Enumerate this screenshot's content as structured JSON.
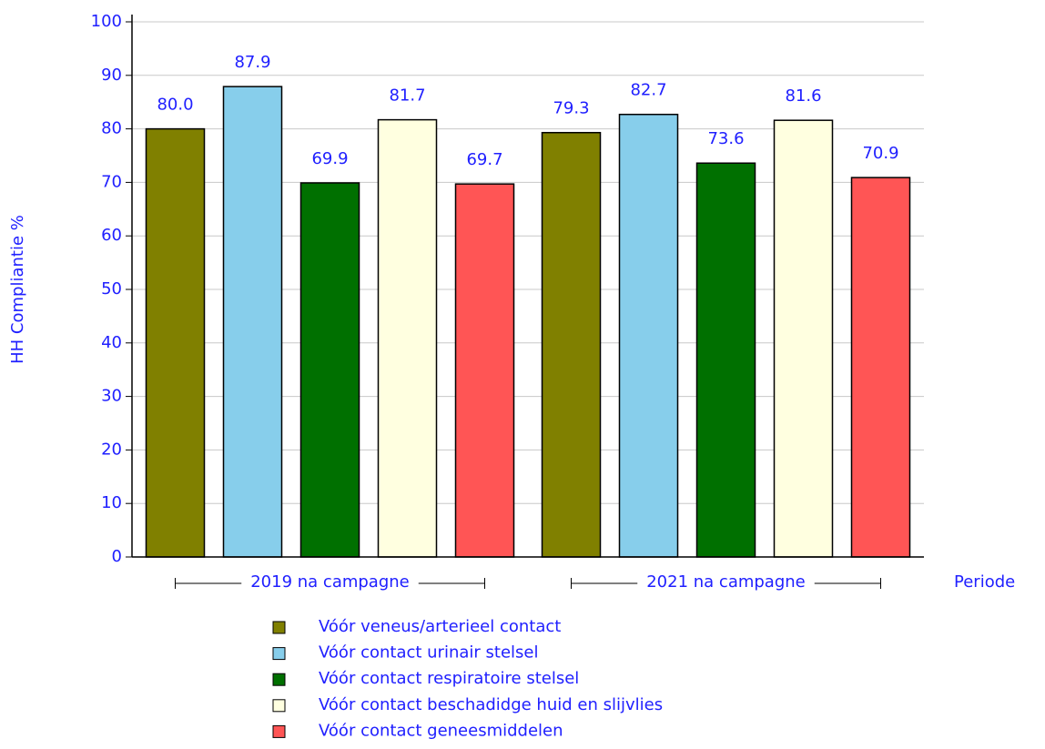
{
  "chart_data": {
    "type": "bar",
    "categories": [
      "2019 na campagne",
      "2021 na campagne"
    ],
    "x_label": "Periode",
    "y_label": "HH Compliantie %",
    "ylim": [
      0,
      100
    ],
    "yticks": [
      0,
      10,
      20,
      30,
      40,
      50,
      60,
      70,
      80,
      90,
      100
    ],
    "grid": true,
    "legend": "bottom",
    "series": [
      {
        "name": "Vóór veneus/arterieel contact",
        "color": "#808000",
        "values": [
          80.0,
          79.3
        ],
        "value_labels": [
          "80.0",
          "79.3"
        ]
      },
      {
        "name": "Vóór contact urinair stelsel",
        "color": "#87ceeb",
        "values": [
          87.9,
          82.7
        ],
        "value_labels": [
          "87.9",
          "82.7"
        ]
      },
      {
        "name": "Vóór contact respiratoire stelsel",
        "color": "#007000",
        "values": [
          69.9,
          73.6
        ],
        "value_labels": [
          "69.9",
          "73.6"
        ]
      },
      {
        "name": "Vóór contact beschadidge huid en slijvlies",
        "color": "#ffffe0",
        "values": [
          81.7,
          81.6
        ],
        "value_labels": [
          "81.7",
          "81.6"
        ]
      },
      {
        "name": "Vóór contact geneesmiddelen",
        "color": "#ff5555",
        "values": [
          69.7,
          70.9
        ],
        "value_labels": [
          "69.7",
          "70.9"
        ]
      }
    ]
  }
}
